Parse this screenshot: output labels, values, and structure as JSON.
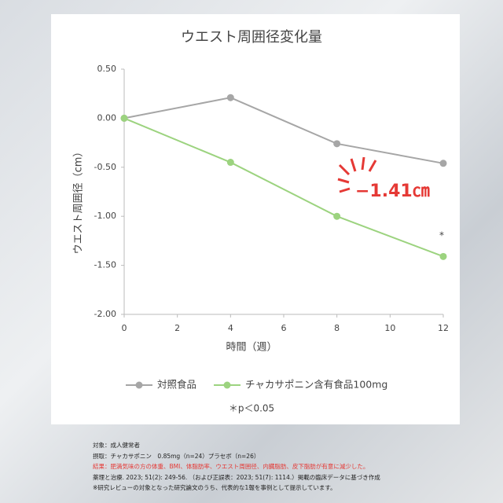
{
  "chart_data": {
    "type": "line",
    "title": "ウエスト周囲径変化量",
    "x_label": "時間（週）",
    "y_label": "ウエスト周囲径（cm）",
    "x": [
      0,
      4,
      8,
      12
    ],
    "series": [
      {
        "name": "対照食品",
        "color": "#a6a6a6",
        "values": [
          0,
          0.21,
          -0.26,
          -0.46
        ]
      },
      {
        "name": "チャカサポニン含有食品100mg",
        "color": "#9cd37f",
        "values": [
          0,
          -0.45,
          -1.0,
          -1.41
        ]
      }
    ],
    "xlim": [
      0,
      12
    ],
    "xticks": [
      0,
      2,
      4,
      6,
      8,
      10,
      12
    ],
    "ylim": [
      -2,
      0.5
    ],
    "yticks": [
      {
        "value": 0.5,
        "label": "0.50"
      },
      {
        "value": 0,
        "label": "0.00"
      },
      {
        "value": -0.5,
        "label": "-0.50"
      },
      {
        "value": -1,
        "label": "-1.00"
      },
      {
        "value": -1.5,
        "label": "-1.50"
      },
      {
        "value": -2,
        "label": "-2.00"
      }
    ],
    "annotation": "−1.41㎝",
    "significance_mark": "*",
    "significance_note": "＊p＜0.05",
    "legend": "bottom"
  },
  "footer_notes": [
    "対象：成人健常者",
    "摂取：チャカサポニン　0.85mg（n=24）プラセボ（n=26）",
    "結果：肥満気味の方の体重、BMI、体脂肪率、ウエスト周囲径、内臓脂肪、皮下脂肪が有意に減少した。",
    "薬理と治療. 2023; 51(2): 249-56. （および正誤表：2023; 51(7): 1114.）掲載の臨床データに基づき作成",
    "※研究レビューの対象となった研究論文のうち、代表的な1報を事例として提示しています。"
  ]
}
